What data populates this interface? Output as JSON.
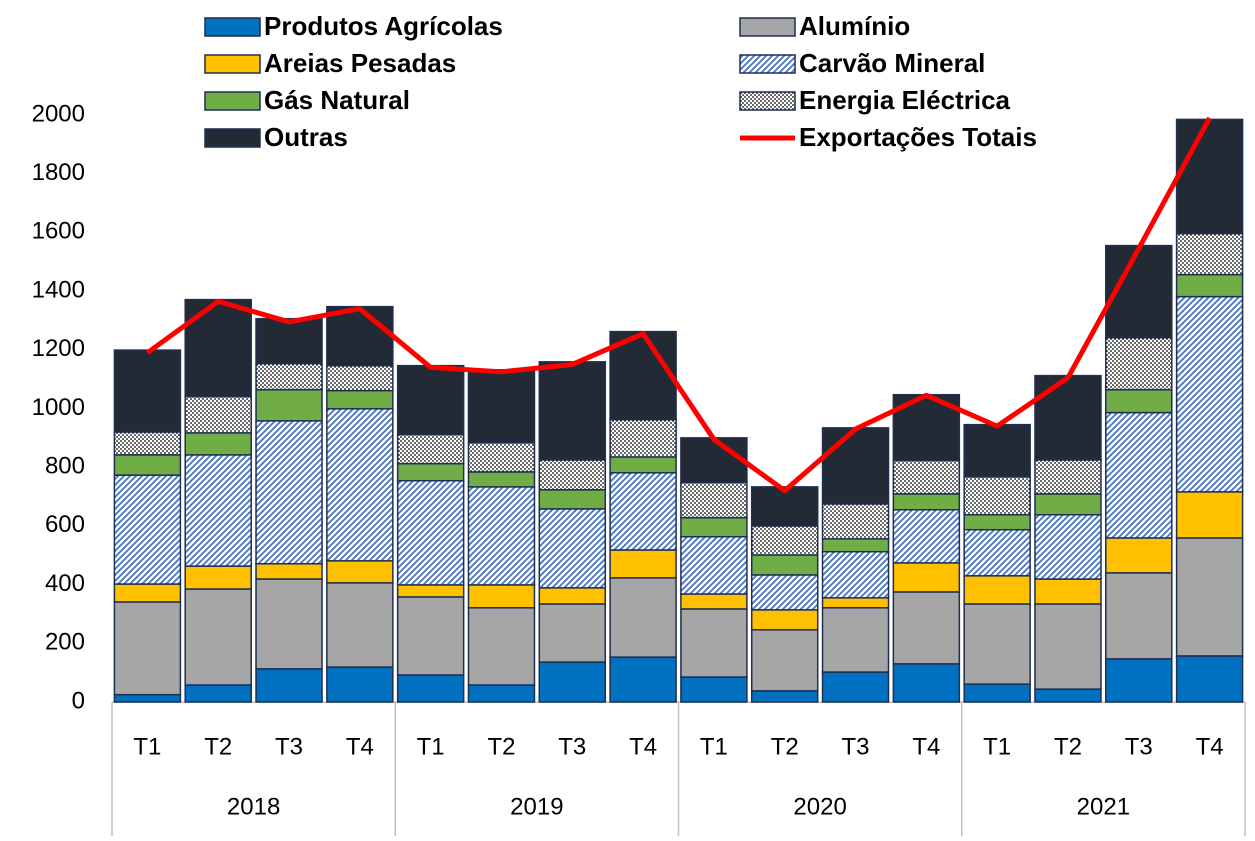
{
  "chart_data": {
    "type": "bar",
    "stacked": true,
    "categories": [
      "T1",
      "T2",
      "T3",
      "T4",
      "T1",
      "T2",
      "T3",
      "T4",
      "T1",
      "T2",
      "T3",
      "T4",
      "T1",
      "T2",
      "T3",
      "T4"
    ],
    "groups": [
      "2018",
      "2019",
      "2020",
      "2021"
    ],
    "ylim": [
      0,
      2000
    ],
    "yticks": [
      0,
      200,
      400,
      600,
      800,
      1000,
      1200,
      1400,
      1600,
      1800,
      2000
    ],
    "grid": false,
    "legend": "top",
    "series": [
      {
        "name": "Produtos Agrícolas",
        "color": "#0070c0",
        "values": [
          25,
          58,
          113,
          119,
          92,
          58,
          136,
          153,
          85,
          38,
          102,
          130,
          61,
          44,
          147,
          157
        ]
      },
      {
        "name": "Alumínio",
        "color": "#a6a6a6",
        "values": [
          316,
          327,
          306,
          287,
          266,
          263,
          198,
          270,
          232,
          208,
          219,
          245,
          273,
          290,
          293,
          402
        ]
      },
      {
        "name": "Areias Pesadas",
        "color": "#ffc000",
        "values": [
          61,
          78,
          52,
          75,
          41,
          78,
          55,
          95,
          51,
          68,
          34,
          99,
          96,
          85,
          119,
          157
        ]
      },
      {
        "name": "Carvão Mineral",
        "color": "#4472c4",
        "pattern": "hatch",
        "values": [
          371,
          379,
          487,
          518,
          355,
          334,
          269,
          263,
          195,
          119,
          157,
          181,
          157,
          219,
          427,
          665
        ]
      },
      {
        "name": "Gás Natural",
        "color": "#70ad47",
        "values": [
          69,
          75,
          106,
          62,
          58,
          51,
          65,
          54,
          65,
          68,
          44,
          54,
          51,
          71,
          78,
          75
        ]
      },
      {
        "name": "Energia Eléctrica",
        "color": "#000000",
        "pattern": "dots",
        "values": [
          78,
          123,
          89,
          85,
          99,
          99,
          102,
          127,
          119,
          99,
          119,
          113,
          129,
          116,
          177,
          140
        ]
      },
      {
        "name": "Outras",
        "color": "#222a35",
        "values": [
          279,
          331,
          153,
          201,
          235,
          249,
          334,
          300,
          153,
          133,
          259,
          225,
          178,
          287,
          314,
          389
        ]
      },
      {
        "name": "Exportações Totais",
        "color": "#ff0000",
        "type": "line",
        "values": [
          1190,
          1365,
          1295,
          1340,
          1140,
          1125,
          1150,
          1255,
          895,
          720,
          930,
          1045,
          940,
          1105,
          1545,
          1990
        ]
      }
    ]
  }
}
